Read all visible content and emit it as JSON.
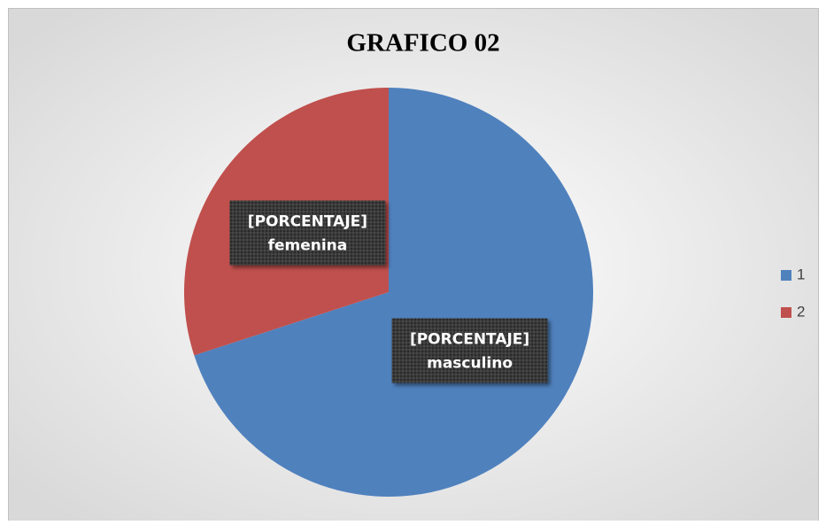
{
  "chart_data": {
    "type": "pie",
    "title": "GRAFICO 02",
    "categories": [
      "1",
      "2"
    ],
    "values": [
      70,
      30
    ],
    "data_labels": [
      [
        "[PORCENTAJE]",
        "masculino"
      ],
      [
        "[PORCENTAJE]",
        "femenina"
      ]
    ],
    "colors": [
      "#4f81bd",
      "#c0504d"
    ],
    "legend": "right"
  }
}
